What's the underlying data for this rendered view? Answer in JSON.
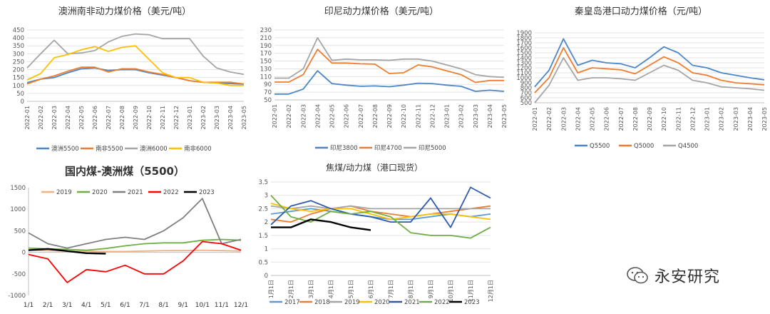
{
  "watermark": {
    "text": "永安研究",
    "icon": "wechat-icon"
  },
  "chart_data": [
    {
      "type": "line",
      "title": "澳洲南非动力煤价格（美元/吨）",
      "ylim": [
        0,
        450
      ],
      "yticks": [
        0,
        50,
        100,
        150,
        200,
        250,
        300,
        350,
        400,
        450
      ],
      "x": [
        "2022-01",
        "2022-02",
        "2022-03",
        "2022-04",
        "2022-05",
        "2022-06",
        "2022-07",
        "2022-08",
        "2022-09",
        "2022-10",
        "2022-11",
        "2022-12",
        "2023-01",
        "2023-02",
        "2023-03",
        "2023-04",
        "2023-05"
      ],
      "legend": "bottom",
      "series": [
        {
          "name": "澳洲5500",
          "color": "#4a86c8",
          "values": [
            118,
            140,
            150,
            180,
            205,
            210,
            195,
            200,
            200,
            180,
            165,
            150,
            130,
            120,
            115,
            112,
            108
          ]
        },
        {
          "name": "南非5500",
          "color": "#ed7d31",
          "values": [
            110,
            140,
            160,
            190,
            215,
            215,
            185,
            205,
            205,
            185,
            170,
            150,
            130,
            120,
            120,
            120,
            110
          ]
        },
        {
          "name": "澳洲6000",
          "color": "#a5a5a5",
          "values": [
            210,
            300,
            385,
            300,
            305,
            320,
            375,
            410,
            425,
            420,
            395,
            395,
            395,
            285,
            210,
            185,
            170
          ]
        },
        {
          "name": "南非6000",
          "color": "#ffc000",
          "values": [
            135,
            175,
            275,
            295,
            325,
            345,
            315,
            340,
            350,
            265,
            180,
            150,
            150,
            120,
            115,
            100,
            100
          ]
        }
      ]
    },
    {
      "type": "line",
      "title": "印尼动力煤价格（美元/吨）",
      "ylim": [
        50,
        230
      ],
      "yticks": [
        50,
        70,
        90,
        110,
        130,
        150,
        170,
        190,
        210,
        230
      ],
      "x": [
        "2022-01",
        "2022-02",
        "2022-03",
        "2022-04",
        "2022-05",
        "2022-06",
        "2022-07",
        "2022-08",
        "2022-09",
        "2022-10",
        "2022-11",
        "2022-12",
        "2023-01",
        "2023-02",
        "2023-03",
        "2023-04",
        "2023-05"
      ],
      "legend": "bottom",
      "series": [
        {
          "name": "印尼3800",
          "color": "#4a86c8",
          "values": [
            65,
            65,
            78,
            125,
            92,
            88,
            85,
            86,
            84,
            88,
            93,
            92,
            88,
            85,
            72,
            75,
            72
          ]
        },
        {
          "name": "印尼4700",
          "color": "#ed7d31",
          "values": [
            96,
            96,
            115,
            180,
            145,
            145,
            143,
            142,
            118,
            120,
            140,
            135,
            125,
            115,
            95,
            100,
            100
          ]
        },
        {
          "name": "印尼5000",
          "color": "#a5a5a5",
          "values": [
            106,
            106,
            130,
            210,
            152,
            155,
            153,
            153,
            152,
            155,
            155,
            150,
            140,
            130,
            115,
            110,
            108
          ]
        }
      ]
    },
    {
      "type": "line",
      "title": "秦皇岛港口动力煤价格（元/吨）",
      "ylim": [
        500,
        1900
      ],
      "yticks": [
        500,
        600,
        700,
        800,
        900,
        1000,
        1100,
        1200,
        1300,
        1400,
        1500,
        1600,
        1700,
        1800,
        1900
      ],
      "x": [
        "2022-01",
        "2022-02",
        "2022-03",
        "2022-04",
        "2022-05",
        "2022-06",
        "2022-07",
        "2022-08",
        "2022-09",
        "2022-10",
        "2022-11",
        "2022-12",
        "2023-01",
        "2023-02",
        "2023-03",
        "2023-04",
        "2023-05"
      ],
      "legend": "bottom",
      "series": [
        {
          "name": "Q5500",
          "color": "#4a86c8",
          "values": [
            820,
            1150,
            1780,
            1250,
            1350,
            1300,
            1280,
            1200,
            1400,
            1620,
            1500,
            1250,
            1200,
            1100,
            1050,
            1000,
            960
          ]
        },
        {
          "name": "Q5000",
          "color": "#ed7d31",
          "values": [
            700,
            1000,
            1600,
            1100,
            1200,
            1180,
            1160,
            1080,
            1250,
            1420,
            1300,
            1100,
            1050,
            950,
            900,
            880,
            860
          ]
        },
        {
          "name": "Q4500",
          "color": "#a5a5a5",
          "values": [
            500,
            850,
            1400,
            950,
            1000,
            1000,
            980,
            950,
            1100,
            1250,
            1150,
            950,
            900,
            820,
            800,
            780,
            750
          ]
        }
      ]
    },
    {
      "type": "line",
      "title": "国内煤-澳洲煤（5500）",
      "ylim": [
        -1000,
        1500
      ],
      "yticks": [
        -1000,
        -500,
        0,
        500,
        1000,
        1500
      ],
      "x": [
        "1/1",
        "2/1",
        "3/1",
        "4/1",
        "5/1",
        "6/1",
        "7/1",
        "8/1",
        "9/1",
        "10/1",
        "11/1",
        "12/1"
      ],
      "legend": "top",
      "series": [
        {
          "name": "2019",
          "color": "#f4b183",
          "values": [
            50,
            40,
            30,
            30,
            20,
            20,
            30,
            40,
            40,
            50,
            40,
            30
          ]
        },
        {
          "name": "2020",
          "color": "#70ad47",
          "values": [
            100,
            80,
            70,
            50,
            90,
            150,
            200,
            220,
            220,
            280,
            300,
            280
          ]
        },
        {
          "name": "2021",
          "color": "#7f7f7f",
          "values": [
            450,
            200,
            100,
            200,
            300,
            350,
            300,
            500,
            800,
            1250,
            200,
            300
          ]
        },
        {
          "name": "2022",
          "color": "#ff0000",
          "values": [
            -50,
            -150,
            -700,
            -400,
            -450,
            -300,
            -500,
            -500,
            -200,
            250,
            200,
            50
          ]
        },
        {
          "name": "2023",
          "color": "#000000",
          "values": [
            50,
            80,
            30,
            -20,
            -30,
            null,
            null,
            null,
            null,
            null,
            null,
            null
          ]
        }
      ]
    },
    {
      "type": "line",
      "title": "焦煤/动力煤（港口现货）",
      "ylim": [
        0,
        3.5
      ],
      "yticks": [
        0,
        0.5,
        1,
        1.5,
        2,
        2.5,
        3,
        3.5
      ],
      "x": [
        "1月1日",
        "2月1日",
        "3月1日",
        "4月1日",
        "5月1日",
        "6月1日",
        "7月1日",
        "8月1日",
        "9月1日",
        "10月1日",
        "11月1日",
        "12月1日"
      ],
      "legend": "bottom",
      "series": [
        {
          "name": "2017",
          "color": "#5b9bd5",
          "values": [
            2.3,
            2.4,
            2.5,
            2.4,
            2.3,
            2.2,
            2.1,
            2.1,
            2.2,
            2.3,
            2.2,
            2.3
          ]
        },
        {
          "name": "2018",
          "color": "#ed7d31",
          "values": [
            2.1,
            2.0,
            2.3,
            2.5,
            2.6,
            2.4,
            2.3,
            2.2,
            2.3,
            2.4,
            2.5,
            2.6
          ]
        },
        {
          "name": "2019",
          "color": "#a5a5a5",
          "values": [
            2.6,
            2.5,
            2.6,
            2.5,
            2.6,
            2.5,
            2.5,
            2.5,
            2.5,
            2.5,
            2.5,
            2.5
          ]
        },
        {
          "name": "2020",
          "color": "#ffc000",
          "values": [
            2.7,
            2.5,
            2.4,
            2.5,
            2.5,
            2.3,
            2.1,
            2.2,
            2.3,
            2.3,
            2.2,
            2.1
          ]
        },
        {
          "name": "2021",
          "color": "#2e5aac",
          "values": [
            1.9,
            2.6,
            2.8,
            2.5,
            2.3,
            2.2,
            2.0,
            2.0,
            2.9,
            1.8,
            3.3,
            2.9
          ]
        },
        {
          "name": "2022",
          "color": "#70ad47",
          "values": [
            3.0,
            2.2,
            2.0,
            2.4,
            2.3,
            2.4,
            2.2,
            1.6,
            1.5,
            1.5,
            1.4,
            1.8
          ]
        },
        {
          "name": "2023",
          "color": "#000000",
          "values": [
            1.8,
            1.8,
            2.1,
            2.0,
            1.8,
            1.7,
            null,
            null,
            null,
            null,
            null,
            null
          ]
        }
      ]
    }
  ]
}
